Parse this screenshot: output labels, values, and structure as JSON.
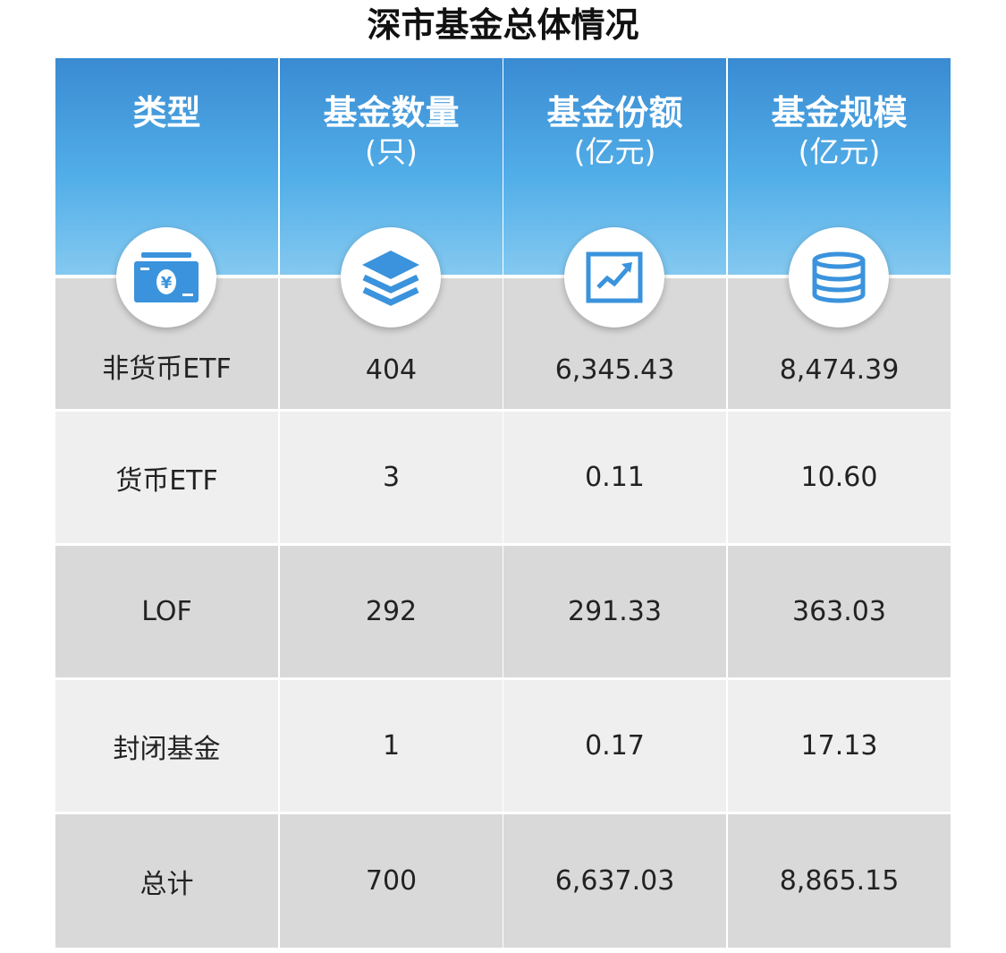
{
  "title": "深市基金总体情况",
  "colors": {
    "header_top": "#3a8bd2",
    "header_bottom": "#84c9f0",
    "icon": "#3a93dc",
    "row_dark": "#d9d9d9",
    "row_light": "#efefef"
  },
  "header": [
    {
      "label": "类型",
      "unit": "",
      "icon": "money-icon"
    },
    {
      "label": "基金数量",
      "unit": "(只)",
      "icon": "layers-icon"
    },
    {
      "label": "基金份额",
      "unit": "(亿元)",
      "icon": "trend-chart-icon"
    },
    {
      "label": "基金规模",
      "unit": "(亿元)",
      "icon": "database-icon"
    }
  ],
  "chart_data": {
    "type": "table",
    "title": "深市基金总体情况",
    "columns": [
      "类型",
      "基金数量(只)",
      "基金份额(亿元)",
      "基金规模(亿元)"
    ],
    "rows": [
      [
        "非货币ETF",
        "404",
        "6,345.43",
        "8,474.39"
      ],
      [
        "货币ETF",
        "3",
        "0.11",
        "10.60"
      ],
      [
        "LOF",
        "292",
        "291.33",
        "363.03"
      ],
      [
        "封闭基金",
        "1",
        "0.17",
        "17.13"
      ],
      [
        "总计",
        "700",
        "6,637.03",
        "8,865.15"
      ]
    ]
  }
}
